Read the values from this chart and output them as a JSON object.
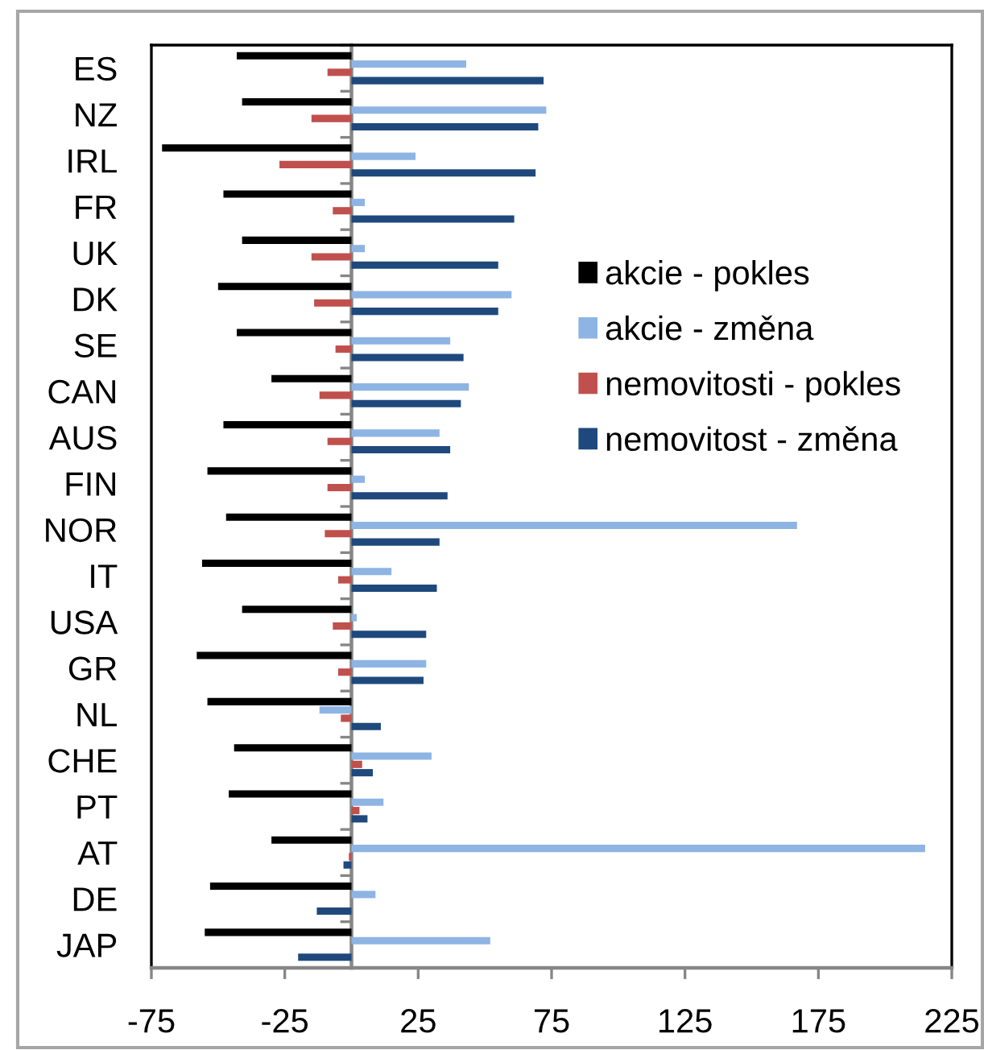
{
  "chart_data": {
    "type": "bar",
    "orientation": "horizontal",
    "categories": [
      "ES",
      "NZ",
      "IRL",
      "FR",
      "UK",
      "DK",
      "SE",
      "CAN",
      "AUS",
      "FIN",
      "NOR",
      "IT",
      "USA",
      "GR",
      "NL",
      "CHE",
      "PT",
      "AT",
      "DE",
      "JAP"
    ],
    "series": [
      {
        "name": "akcie - pokles",
        "color": "#000000",
        "values": [
          -43,
          -41,
          -71,
          -48,
          -41,
          -50,
          -43,
          -30,
          -48,
          -54,
          -47,
          -56,
          -41,
          -58,
          -54,
          -44,
          -46,
          -30,
          -53,
          -55
        ]
      },
      {
        "name": "akcie - změna",
        "color": "#8eb4e3",
        "values": [
          43,
          73,
          24,
          5,
          5,
          60,
          37,
          44,
          33,
          5,
          167,
          15,
          2,
          28,
          -12,
          30,
          12,
          215,
          9,
          52
        ]
      },
      {
        "name": "nemovitosti - pokles",
        "color": "#c0504d",
        "values": [
          -9,
          -15,
          -27,
          -7,
          -15,
          -14,
          -6,
          -12,
          -9,
          -9,
          -10,
          -5,
          -7,
          -5,
          -4,
          4,
          3,
          -1,
          null,
          null
        ]
      },
      {
        "name": "nemovitost - změna",
        "color": "#1f497d",
        "values": [
          72,
          70,
          69,
          61,
          55,
          55,
          42,
          41,
          37,
          36,
          33,
          32,
          28,
          27,
          11,
          8,
          6,
          -3,
          -13,
          -20
        ]
      }
    ],
    "xlim": [
      -75,
      225
    ],
    "xticks": [
      -75,
      -25,
      25,
      75,
      125,
      175,
      225
    ],
    "legend": "right"
  }
}
